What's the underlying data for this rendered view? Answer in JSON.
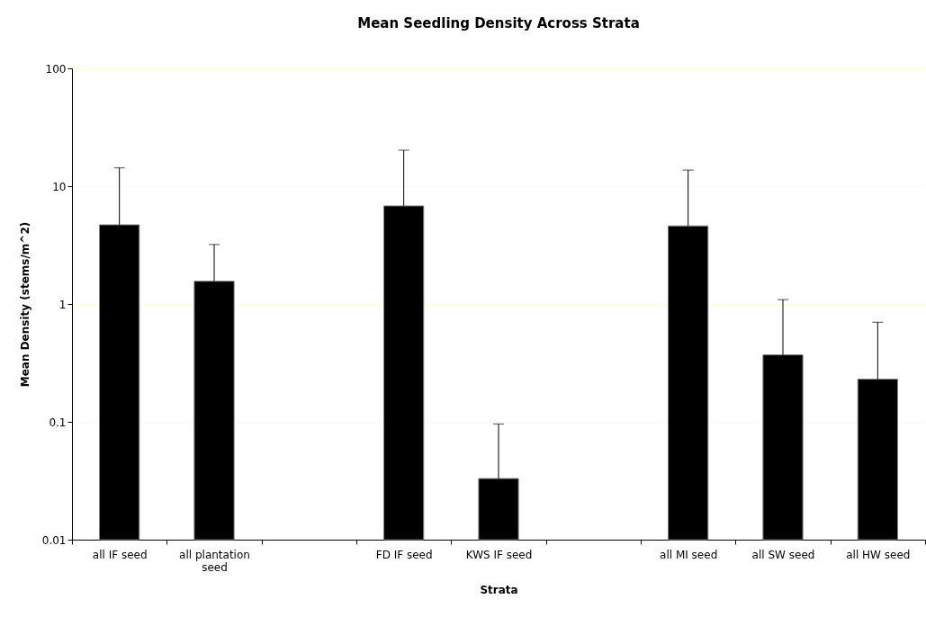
{
  "chart_data": {
    "type": "bar",
    "title": "Mean Seedling Density Across Strata",
    "xlabel": "Strata",
    "ylabel": "Mean Density (stems/m^2)",
    "categories": [
      "all IF seed",
      "all plantation seed",
      null,
      "FD IF seed",
      "KWS IF seed",
      null,
      "all MI seed",
      "all SW seed",
      "all HW seed"
    ],
    "values": [
      4.7,
      1.56,
      null,
      6.8,
      0.033,
      null,
      4.6,
      0.37,
      0.23
    ],
    "errors": [
      [
        4.7,
        14.3
      ],
      [
        1.56,
        3.2
      ],
      null,
      [
        6.8,
        20.2
      ],
      [
        0.033,
        0.096
      ],
      null,
      [
        4.6,
        13.7
      ],
      [
        0.37,
        1.09
      ],
      [
        0.23,
        0.7
      ]
    ],
    "color": "#000000",
    "ylim": [
      0.01,
      100
    ],
    "yticks": [
      0.01,
      0.1,
      1,
      10,
      100
    ],
    "log": true,
    "grid": "y"
  }
}
